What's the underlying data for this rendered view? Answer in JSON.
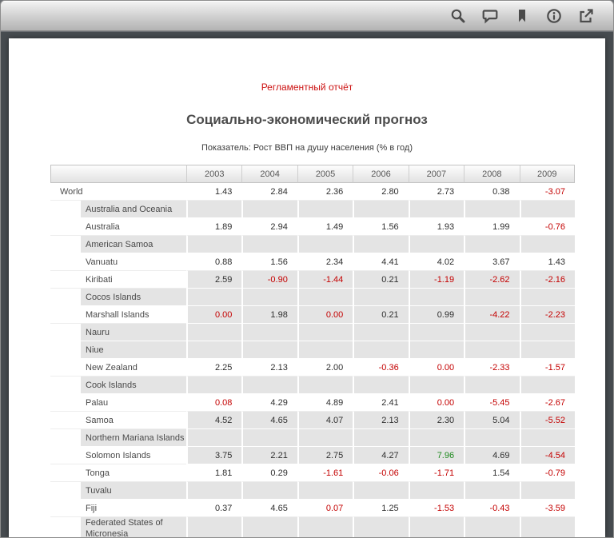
{
  "toolbar": {
    "icons": [
      "search",
      "comment",
      "bookmark",
      "info",
      "export"
    ]
  },
  "report": {
    "kicker": "Регламентный отчёт",
    "title": "Социально-экономический прогноз",
    "subtitle": "Показатель: Рост ВВП на душу населения (% в год)"
  },
  "colors": {
    "accent": "#cc1111",
    "negative": "#c40000",
    "positive": "#1e8a1e"
  },
  "table": {
    "years": [
      "2003",
      "2004",
      "2005",
      "2006",
      "2007",
      "2008",
      "2009"
    ],
    "rows": [
      {
        "label": "World",
        "indent": 0,
        "shaded": false,
        "values": [
          "1.43",
          "2.84",
          "2.36",
          "2.80",
          "2.73",
          "0.38",
          "-3.07"
        ],
        "tones": [
          "d",
          "d",
          "d",
          "d",
          "d",
          "d",
          "r"
        ]
      },
      {
        "label": "Australia and Oceania",
        "indent": 1,
        "shaded": true,
        "values": [],
        "tones": []
      },
      {
        "label": "Australia",
        "indent": 1,
        "shaded": false,
        "values": [
          "1.89",
          "2.94",
          "1.49",
          "1.56",
          "1.93",
          "1.99",
          "-0.76"
        ],
        "tones": [
          "d",
          "d",
          "d",
          "d",
          "d",
          "d",
          "r"
        ]
      },
      {
        "label": "American Samoa",
        "indent": 1,
        "shaded": true,
        "values": [],
        "tones": []
      },
      {
        "label": "Vanuatu",
        "indent": 1,
        "shaded": false,
        "values": [
          "0.88",
          "1.56",
          "2.34",
          "4.41",
          "4.02",
          "3.67",
          "1.43"
        ],
        "tones": [
          "d",
          "d",
          "d",
          "d",
          "d",
          "d",
          "d"
        ]
      },
      {
        "label": "Kiribati",
        "indent": 1,
        "shaded": true,
        "values": [
          "2.59",
          "-0.90",
          "-1.44",
          "0.21",
          "-1.19",
          "-2.62",
          "-2.16"
        ],
        "tones": [
          "d",
          "r",
          "r",
          "d",
          "r",
          "r",
          "r"
        ]
      },
      {
        "label": "Cocos Islands",
        "indent": 1,
        "shaded": true,
        "values": [],
        "tones": []
      },
      {
        "label": "Marshall Islands",
        "indent": 1,
        "shaded": true,
        "values": [
          "0.00",
          "1.98",
          "0.00",
          "0.21",
          "0.99",
          "-4.22",
          "-2.23"
        ],
        "tones": [
          "r",
          "d",
          "r",
          "d",
          "d",
          "r",
          "r"
        ]
      },
      {
        "label": "Nauru",
        "indent": 1,
        "shaded": true,
        "values": [],
        "tones": []
      },
      {
        "label": "Niue",
        "indent": 1,
        "shaded": true,
        "values": [],
        "tones": []
      },
      {
        "label": "New Zealand",
        "indent": 1,
        "shaded": false,
        "values": [
          "2.25",
          "2.13",
          "2.00",
          "-0.36",
          "0.00",
          "-2.33",
          "-1.57"
        ],
        "tones": [
          "d",
          "d",
          "d",
          "r",
          "r",
          "r",
          "r"
        ]
      },
      {
        "label": "Cook Islands",
        "indent": 1,
        "shaded": true,
        "values": [],
        "tones": []
      },
      {
        "label": "Palau",
        "indent": 1,
        "shaded": false,
        "values": [
          "0.08",
          "4.29",
          "4.89",
          "2.41",
          "0.00",
          "-5.45",
          "-2.67"
        ],
        "tones": [
          "r",
          "d",
          "d",
          "d",
          "r",
          "r",
          "r"
        ]
      },
      {
        "label": "Samoa",
        "indent": 1,
        "shaded": true,
        "values": [
          "4.52",
          "4.65",
          "4.07",
          "2.13",
          "2.30",
          "5.04",
          "-5.52"
        ],
        "tones": [
          "d",
          "d",
          "d",
          "d",
          "d",
          "d",
          "r"
        ]
      },
      {
        "label": "Northern Mariana Islands",
        "indent": 1,
        "shaded": true,
        "values": [],
        "tones": []
      },
      {
        "label": "Solomon Islands",
        "indent": 1,
        "shaded": true,
        "values": [
          "3.75",
          "2.21",
          "2.75",
          "4.27",
          "7.96",
          "4.69",
          "-4.54"
        ],
        "tones": [
          "d",
          "d",
          "d",
          "d",
          "g",
          "d",
          "r"
        ]
      },
      {
        "label": "Tonga",
        "indent": 1,
        "shaded": false,
        "values": [
          "1.81",
          "0.29",
          "-1.61",
          "-0.06",
          "-1.71",
          "1.54",
          "-0.79"
        ],
        "tones": [
          "d",
          "d",
          "r",
          "r",
          "r",
          "d",
          "r"
        ]
      },
      {
        "label": "Tuvalu",
        "indent": 1,
        "shaded": true,
        "values": [],
        "tones": []
      },
      {
        "label": "Fiji",
        "indent": 1,
        "shaded": false,
        "values": [
          "0.37",
          "4.65",
          "0.07",
          "1.25",
          "-1.53",
          "-0.43",
          "-3.59"
        ],
        "tones": [
          "d",
          "d",
          "r",
          "d",
          "r",
          "r",
          "r"
        ]
      },
      {
        "label": "Federated States of Micronesia",
        "indent": 1,
        "shaded": true,
        "values": [],
        "tones": []
      }
    ]
  }
}
